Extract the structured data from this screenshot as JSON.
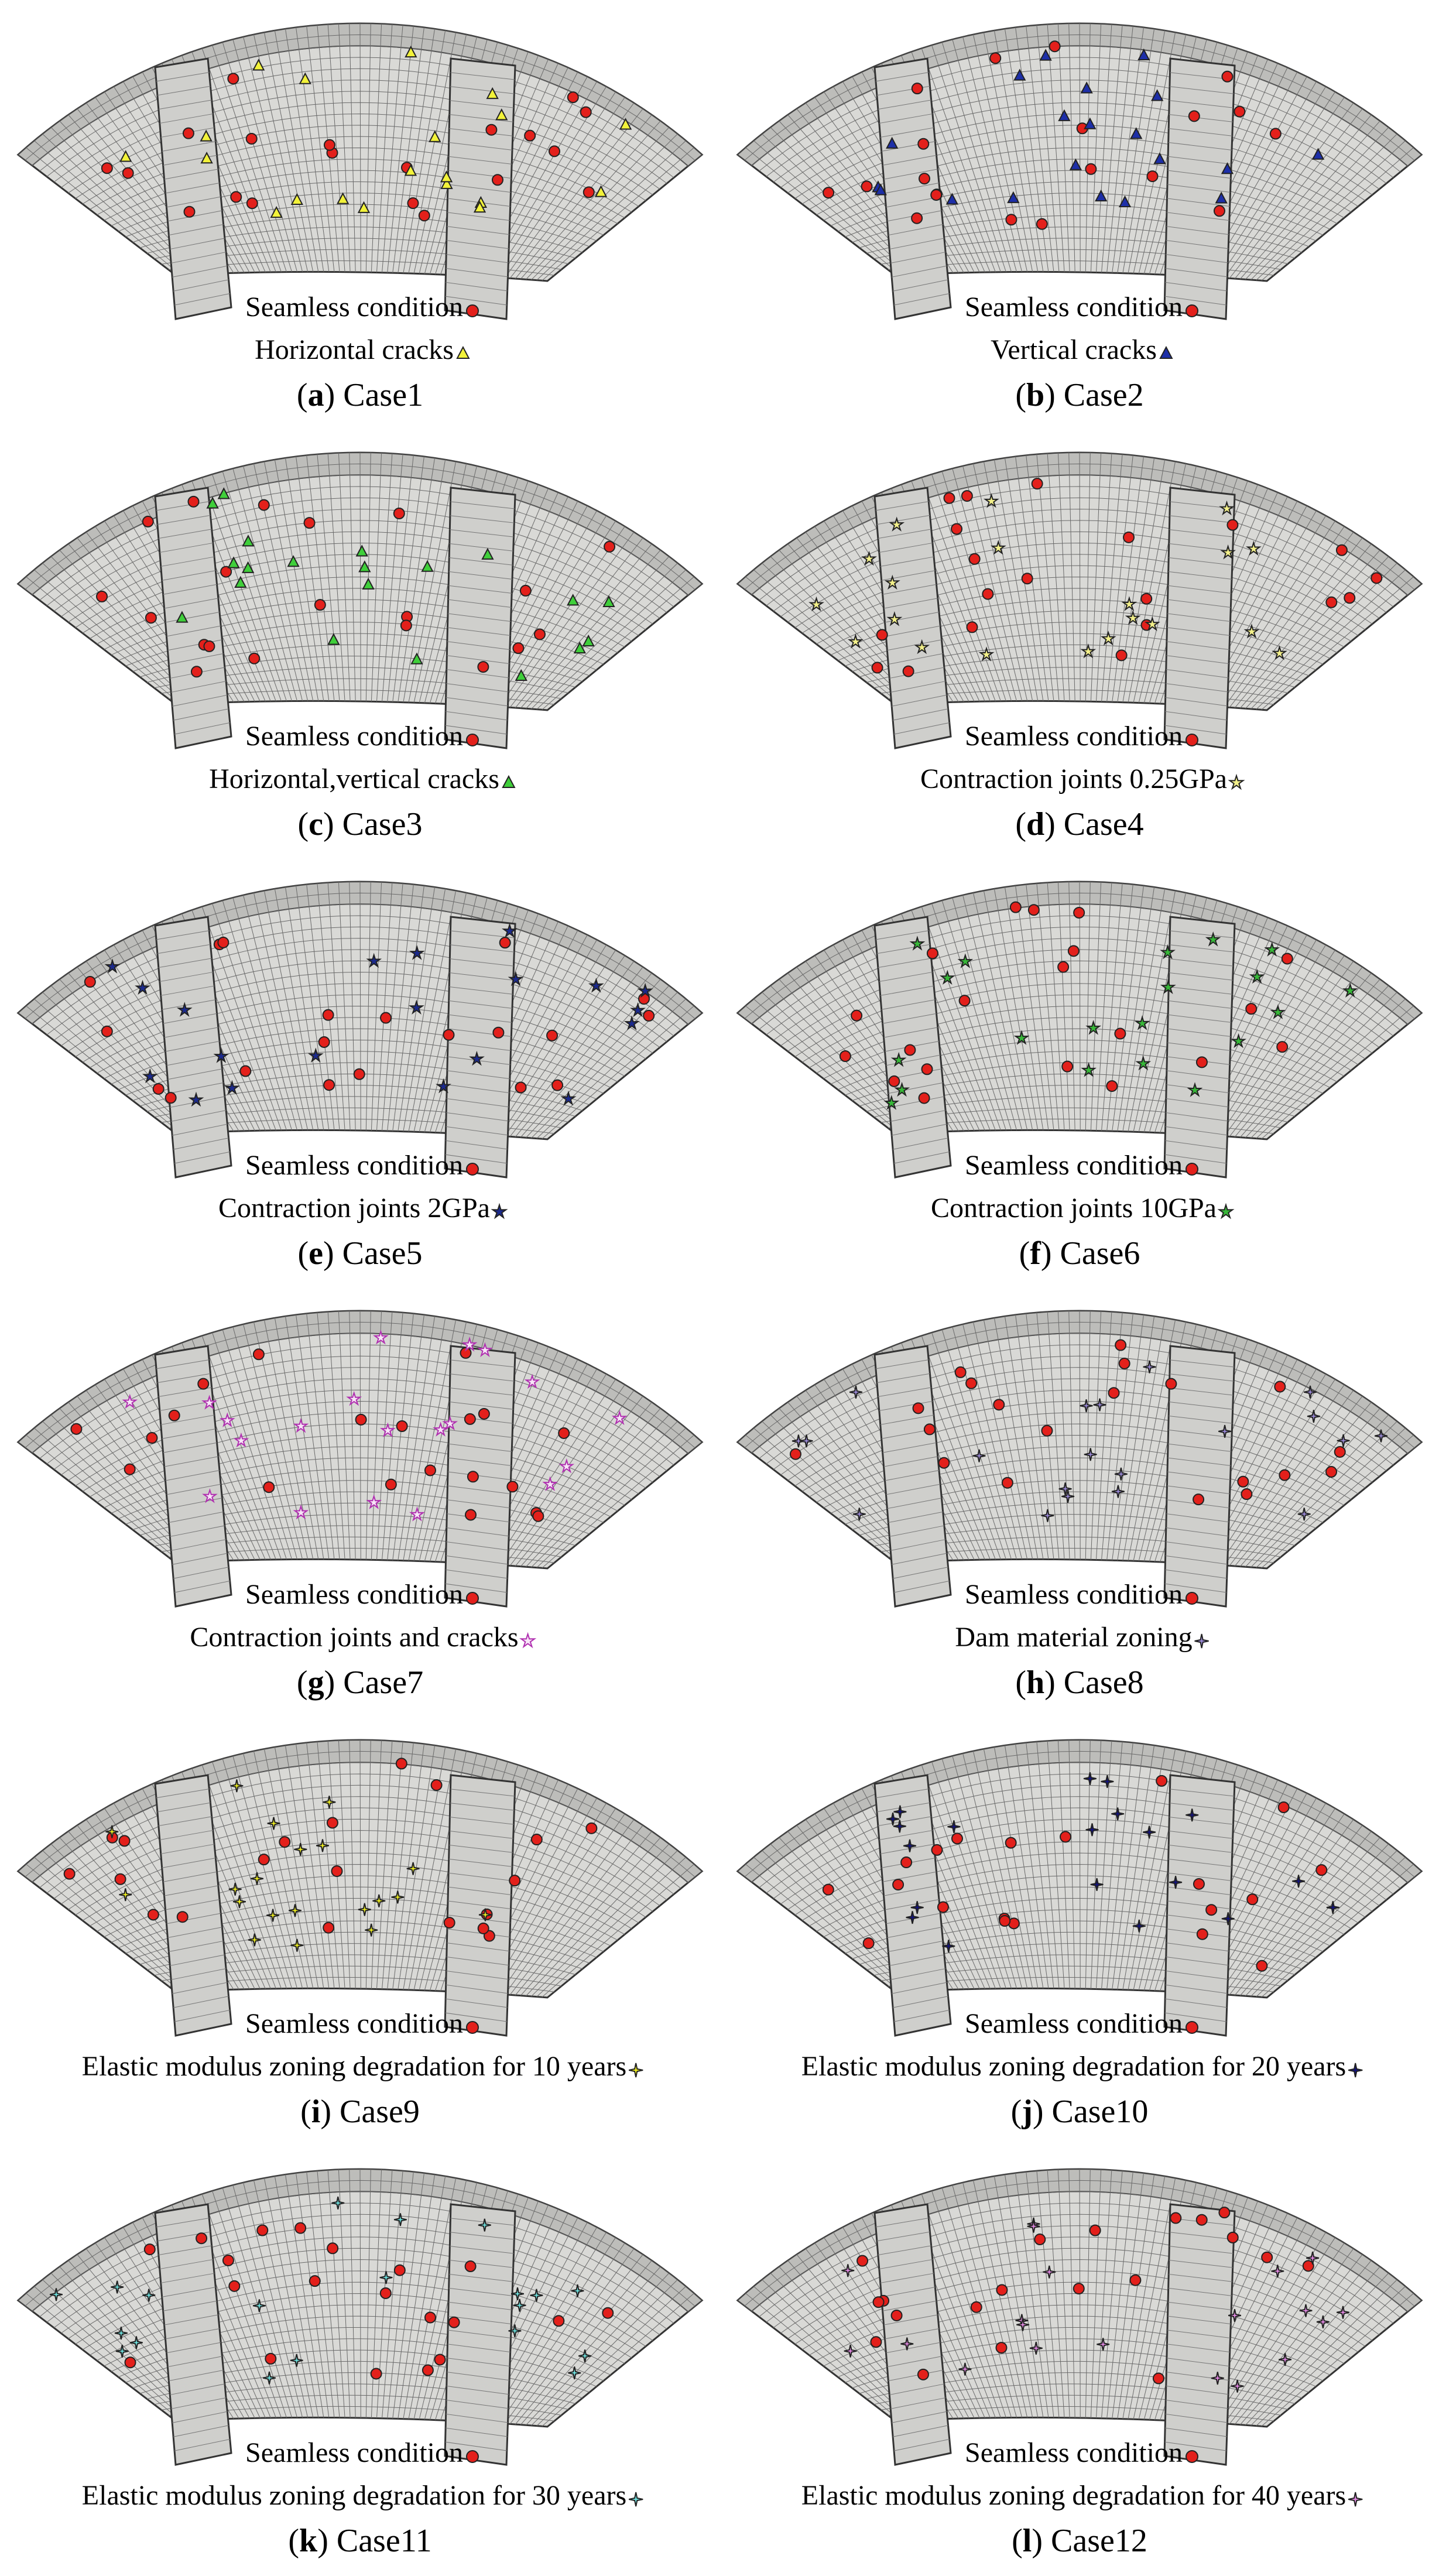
{
  "caption_brackets": [
    "(",
    ")"
  ],
  "seamless_marker": {
    "shape": "circle",
    "color": "#e3201b"
  },
  "panels": [
    {
      "legend": [
        "Seamless condition",
        "Horizontal cracks"
      ],
      "letter": "a",
      "case": "Case1",
      "marker": {
        "shape": "triangle",
        "color": "#f2f23a"
      }
    },
    {
      "legend": [
        "Seamless condition",
        "Vertical cracks"
      ],
      "letter": "b",
      "case": "Case2",
      "marker": {
        "shape": "triangle",
        "color": "#1d2fa8"
      }
    },
    {
      "legend": [
        "Seamless condition",
        "Horizontal,vertical cracks"
      ],
      "letter": "c",
      "case": "Case3",
      "marker": {
        "shape": "triangle",
        "color": "#3fcf3a"
      }
    },
    {
      "legend": [
        "Seamless condition",
        "Contraction joints 0.25GPa"
      ],
      "letter": "d",
      "case": "Case4",
      "marker": {
        "shape": "star",
        "color": "#f3f08a"
      }
    },
    {
      "legend": [
        "Seamless condition",
        "Contraction joints 2GPa"
      ],
      "letter": "e",
      "case": "Case5",
      "marker": {
        "shape": "star",
        "color": "#1b2a8e"
      }
    },
    {
      "legend": [
        "Seamless condition",
        "Contraction joints 10GPa"
      ],
      "letter": "f",
      "case": "Case6",
      "marker": {
        "shape": "star",
        "color": "#37b838"
      }
    },
    {
      "legend": [
        "Seamless condition",
        "Contraction joints and cracks"
      ],
      "letter": "g",
      "case": "Case7",
      "marker": {
        "shape": "star",
        "color": "#f7e6f7"
      }
    },
    {
      "legend": [
        "Seamless condition",
        "Dam material zoning"
      ],
      "letter": "h",
      "case": "Case8",
      "marker": {
        "shape": "sparkle",
        "color": "#9b8ad8"
      }
    },
    {
      "legend": [
        "Seamless condition",
        "Elastic modulus zoning degradation for 10 years"
      ],
      "letter": "i",
      "case": "Case9",
      "marker": {
        "shape": "sparkle",
        "color": "#f2f220"
      }
    },
    {
      "legend": [
        "Seamless condition",
        "Elastic modulus zoning degradation for 20 years"
      ],
      "letter": "j",
      "case": "Case10",
      "marker": {
        "shape": "sparkle",
        "color": "#12127e"
      }
    },
    {
      "legend": [
        "Seamless condition",
        "Elastic modulus zoning degradation for 30 years"
      ],
      "letter": "k",
      "case": "Case11",
      "marker": {
        "shape": "sparkle",
        "color": "#6fe3e0"
      }
    },
    {
      "legend": [
        "Seamless condition",
        "Elastic modulus zoning degradation for 40 years"
      ],
      "letter": "l",
      "case": "Case12",
      "marker": {
        "shape": "sparkle",
        "color": "#e58ae5"
      }
    }
  ]
}
